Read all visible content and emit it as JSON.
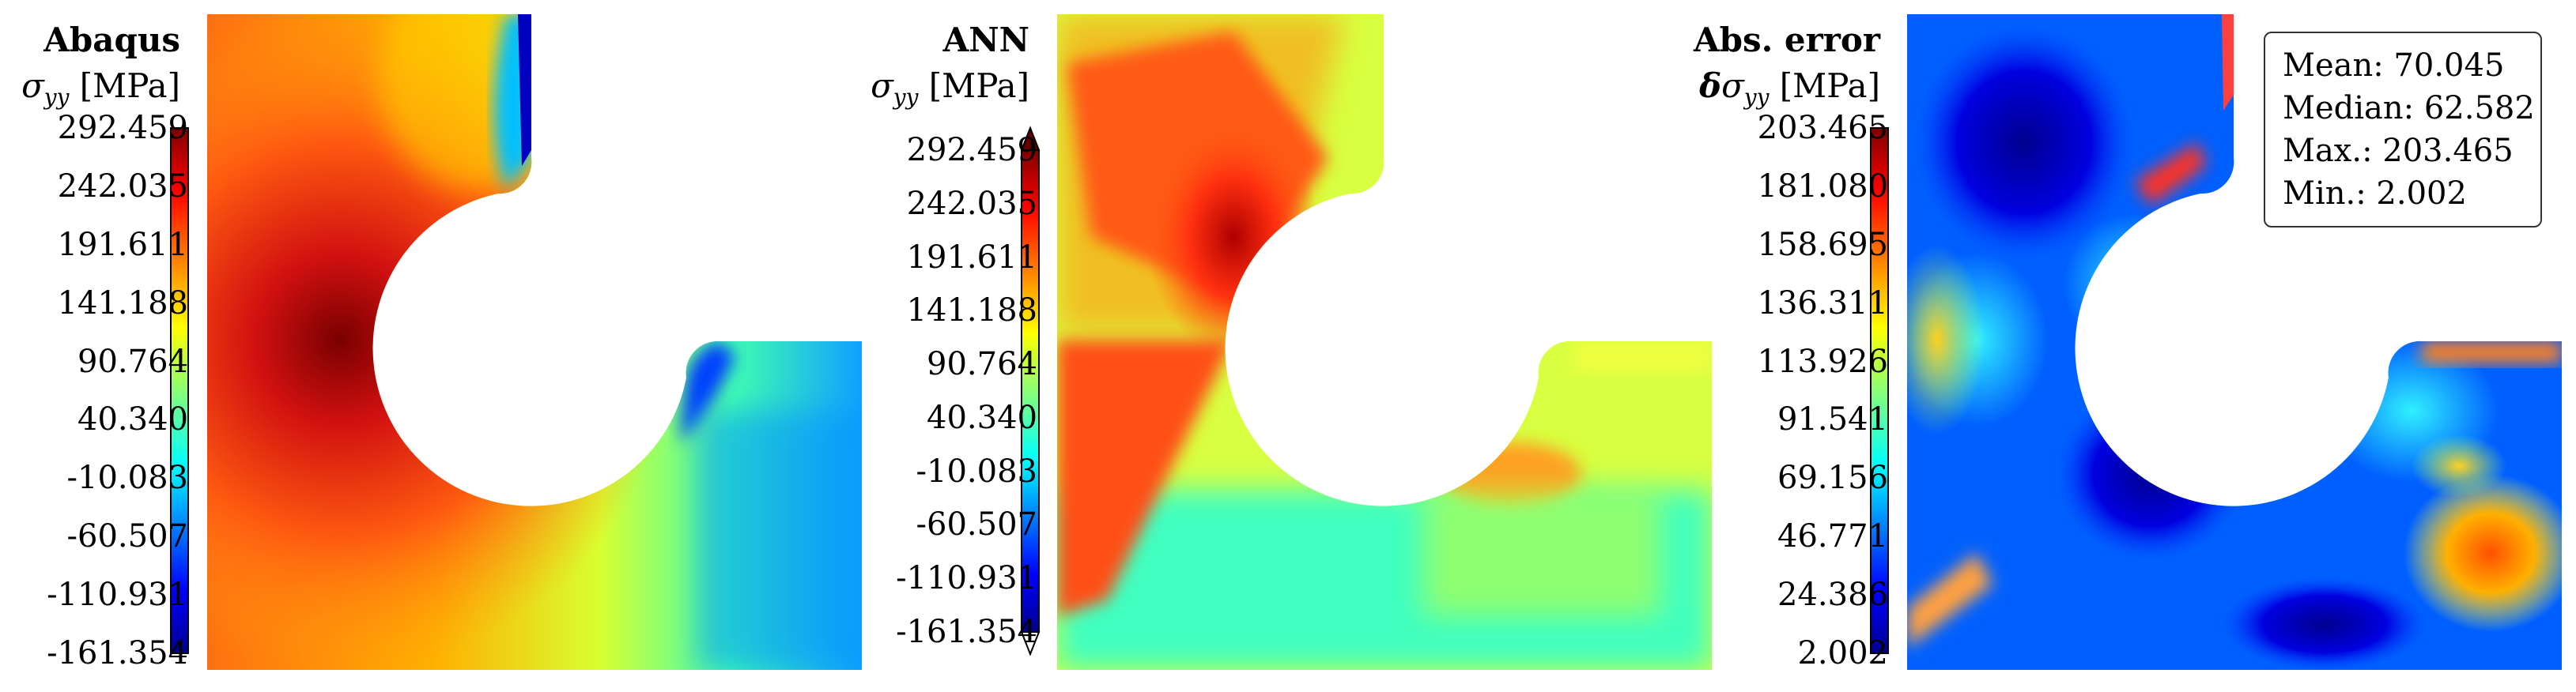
{
  "panels": [
    {
      "title": "Abaqus",
      "quantity_symbol": "σ",
      "quantity_subscript": "yy",
      "quantity_prefix": "",
      "unit": "[MPa]",
      "colorbar_ticks": [
        "292.459",
        "242.035",
        "191.611",
        "141.188",
        "90.764",
        "40.340",
        "-10.083",
        "-60.507",
        "-110.931",
        "-161.354"
      ]
    },
    {
      "title": "ANN",
      "quantity_symbol": "σ",
      "quantity_subscript": "yy",
      "quantity_prefix": "",
      "unit": "[MPa]",
      "colorbar_ticks": [
        "292.459",
        "242.035",
        "191.611",
        "141.188",
        "90.764",
        "40.340",
        "-10.083",
        "-60.507",
        "-110.931",
        "-161.354"
      ]
    },
    {
      "title": "Abs. error",
      "quantity_symbol": "σ",
      "quantity_subscript": "yy",
      "quantity_prefix": "δ",
      "unit": "[MPa]",
      "colorbar_ticks": [
        "203.465",
        "181.080",
        "158.695",
        "136.311",
        "113.926",
        "91.541",
        "69.156",
        "46.771",
        "24.386",
        "2.002"
      ]
    }
  ],
  "error_stats": {
    "mean": "Mean: 70.045",
    "median": "Median: 62.582",
    "max": "Max.: 203.465",
    "min": "Min.: 2.002"
  },
  "colormap": [
    "#00008f",
    "#0000ff",
    "#0080ff",
    "#00ffff",
    "#80ff80",
    "#ffff00",
    "#ff8000",
    "#ff0000",
    "#800000"
  ]
}
